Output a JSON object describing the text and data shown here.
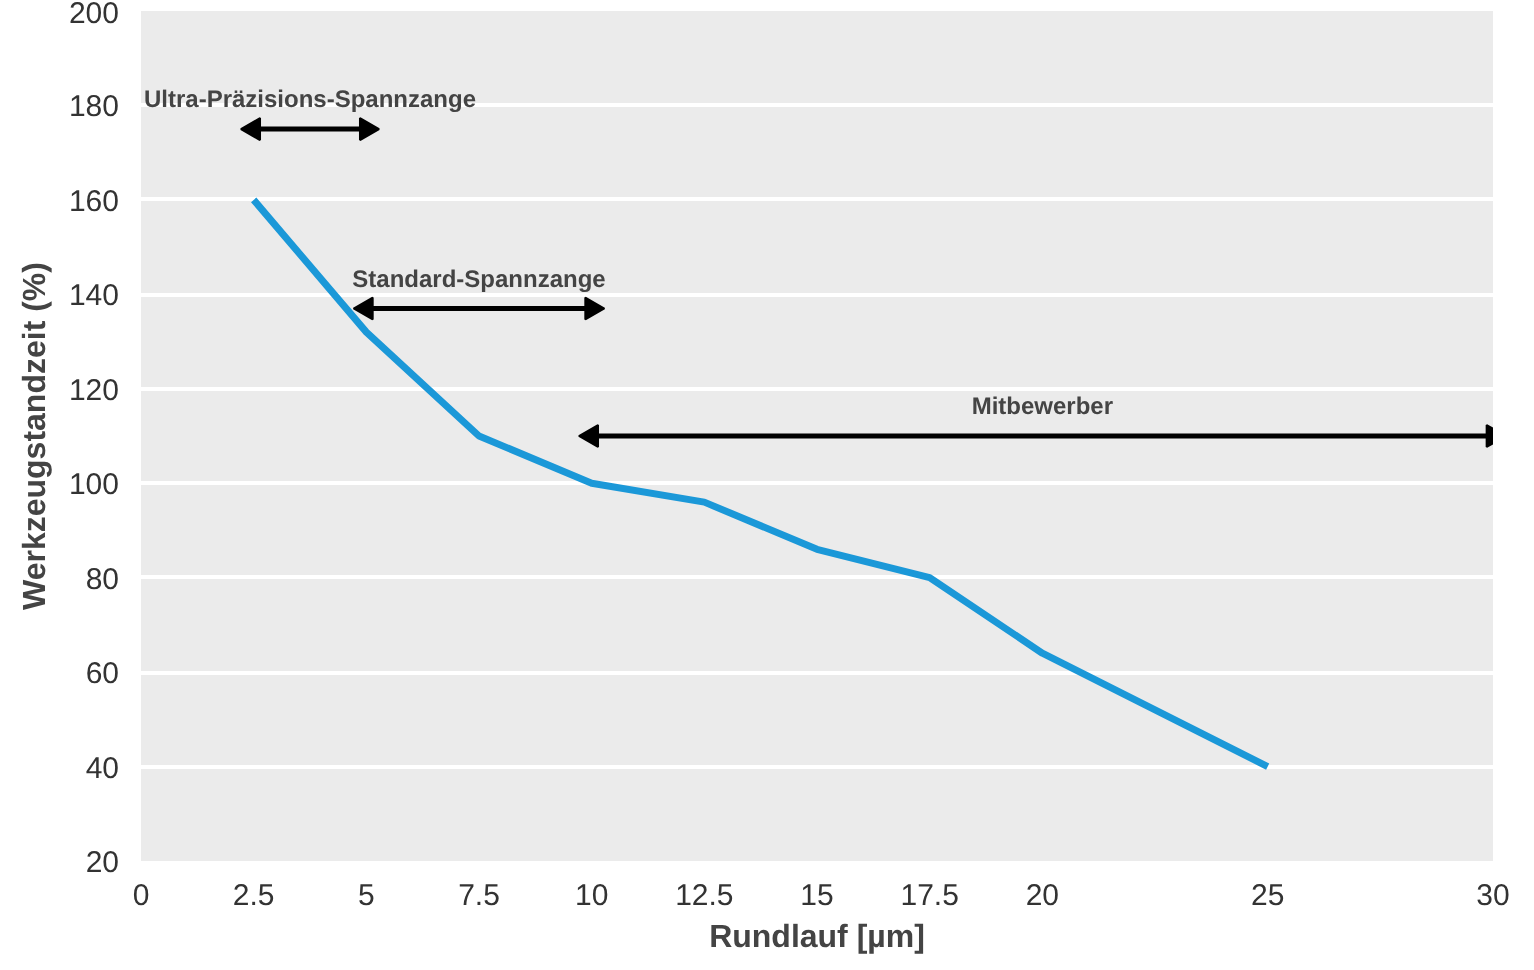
{
  "chart_data": {
    "type": "line",
    "xlabel": "Rundlauf [µm]",
    "ylabel": "Werkzeugstandzeit (%)",
    "x": [
      2.5,
      5,
      7.5,
      10,
      12.5,
      15,
      17.5,
      20,
      25
    ],
    "series": [
      {
        "color": "#1b98d8",
        "values": [
          160,
          132,
          110,
          100,
          96,
          86,
          80,
          64,
          40
        ]
      },
      {
        "name": "Ultra-Präzisions-Spannzange",
        "color": "#000000",
        "x": [
          2.5,
          5
        ],
        "values": [
          175,
          175
        ],
        "marker": "triangle"
      },
      {
        "name": "Standard-Spannzange",
        "color": "#000000",
        "x": [
          5,
          10
        ],
        "values": [
          137,
          137
        ],
        "marker": "triangle"
      },
      {
        "name": "Mitbewerber",
        "color": "#000000",
        "x": [
          10,
          30
        ],
        "values": [
          110,
          110
        ],
        "marker": "triangle"
      }
    ],
    "xlim": [
      0,
      30
    ],
    "xticks": [
      0,
      {
        "value": 2.5,
        "label": "2.5"
      },
      5,
      {
        "value": 7.5,
        "label": "7.5"
      },
      10,
      {
        "value": 12.5,
        "label": "12.5"
      },
      15,
      {
        "value": 17.5,
        "label": "17.5"
      },
      20,
      25,
      30
    ],
    "ylim": [
      20,
      200
    ],
    "yticks": [
      20,
      40,
      60,
      80,
      100,
      120,
      140,
      160,
      180,
      200
    ],
    "grid": "y",
    "marker": "none",
    "line_style": "solid"
  }
}
